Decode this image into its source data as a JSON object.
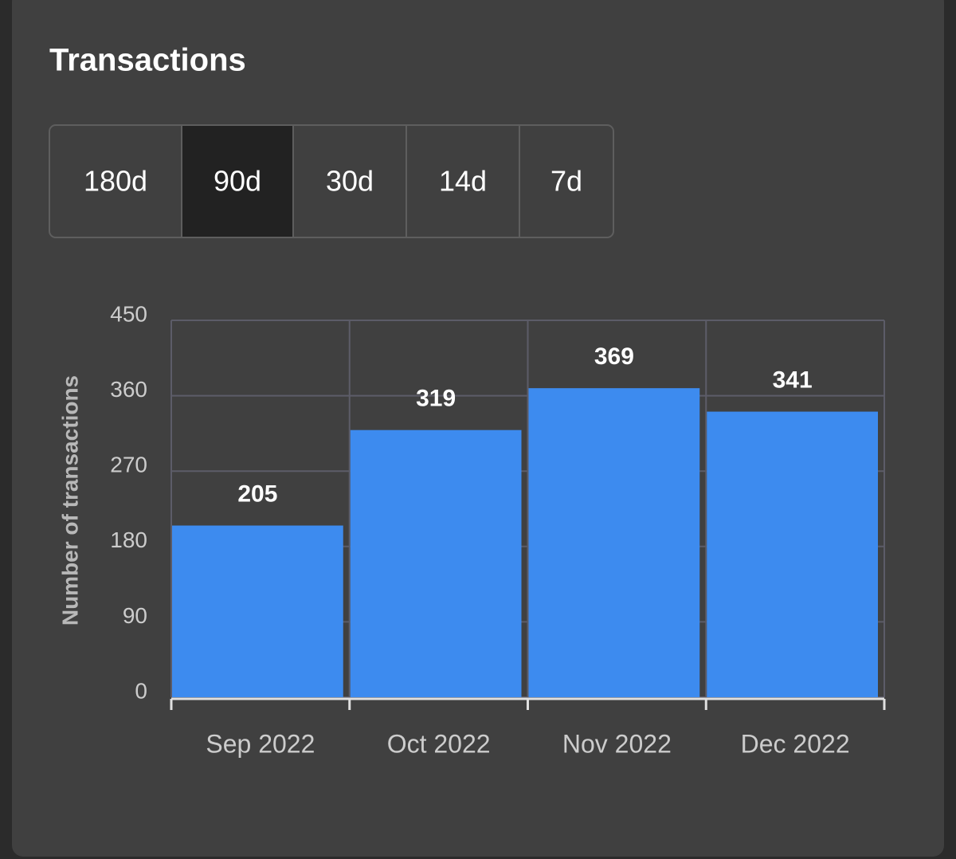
{
  "header": {
    "title": "Transactions"
  },
  "range_tabs": {
    "options": [
      "180d",
      "90d",
      "30d",
      "14d",
      "7d"
    ],
    "selected": 1
  },
  "chart_data": {
    "type": "bar",
    "categories": [
      "Sep 2022",
      "Oct 2022",
      "Nov 2022",
      "Dec 2022"
    ],
    "values": [
      205,
      319,
      369,
      341
    ],
    "color": "#3d8bef",
    "y_label": "Number of transactions",
    "ylim": [
      0,
      450
    ],
    "yticks": [
      0,
      90,
      180,
      270,
      360,
      450
    ],
    "grid": true
  }
}
